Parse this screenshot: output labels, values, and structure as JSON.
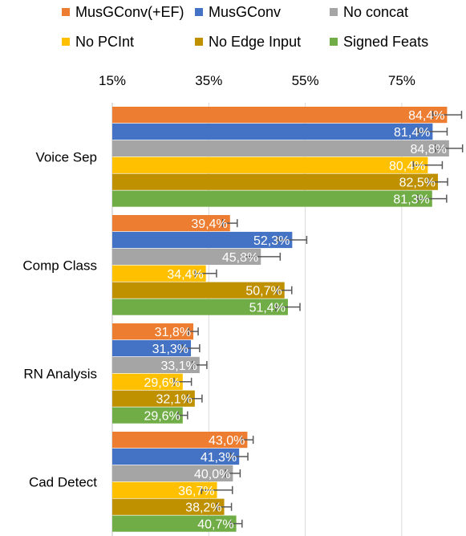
{
  "chart_data": {
    "type": "bar",
    "orientation": "horizontal",
    "categories": [
      "Voice Sep",
      "Comp Class",
      "RN Analysis",
      "Cad Detect"
    ],
    "xlim": [
      15,
      86
    ],
    "x_tick_labels": [
      "15%",
      "35%",
      "55%",
      "75%"
    ],
    "x_tick_values": [
      15,
      35,
      55,
      75
    ],
    "x_axis_position": "top",
    "grid": true,
    "legend_position": "top",
    "error_bars": true,
    "series": [
      {
        "name": "MusGConv(+EF)",
        "color": "#ED7D31",
        "values": [
          84.4,
          39.4,
          31.8,
          43.0
        ],
        "errors": [
          3.0,
          1.5,
          1.0,
          1.2
        ],
        "labels": [
          "84,4%",
          "39,4%",
          "31,8%",
          "43,0%"
        ]
      },
      {
        "name": "MusGConv",
        "color": "#4472C4",
        "values": [
          81.4,
          52.3,
          31.3,
          41.3
        ],
        "errors": [
          3.0,
          3.0,
          1.8,
          1.8
        ],
        "labels": [
          "81,4%",
          "52,3%",
          "31,3%",
          "41,3%"
        ]
      },
      {
        "name": "No concat",
        "color": "#A5A5A5",
        "values": [
          84.8,
          45.8,
          33.1,
          40.0
        ],
        "errors": [
          2.8,
          4.0,
          1.5,
          1.5
        ],
        "labels": [
          "84,8%",
          "45,8%",
          "33,1%",
          "40,0%"
        ]
      },
      {
        "name": "No PCInt",
        "color": "#FFC000",
        "values": [
          80.4,
          34.4,
          29.6,
          36.7
        ],
        "errors": [
          3.0,
          2.2,
          1.8,
          3.2
        ],
        "labels": [
          "80,4%",
          "34,4%",
          "29,6%",
          "36,7%"
        ]
      },
      {
        "name": "No Edge Input",
        "color": "#BF9000",
        "values": [
          82.5,
          50.7,
          32.1,
          38.2
        ],
        "errors": [
          2.0,
          1.5,
          1.5,
          1.5
        ],
        "labels": [
          "82,5%",
          "50,7%",
          "32,1%",
          "38,2%"
        ]
      },
      {
        "name": "Signed Feats",
        "color": "#70AD47",
        "values": [
          81.3,
          51.4,
          29.6,
          40.7
        ],
        "errors": [
          3.0,
          2.5,
          1.0,
          1.2
        ],
        "labels": [
          "81,3%",
          "51,4%",
          "29,6%",
          "40,7%"
        ]
      }
    ]
  }
}
